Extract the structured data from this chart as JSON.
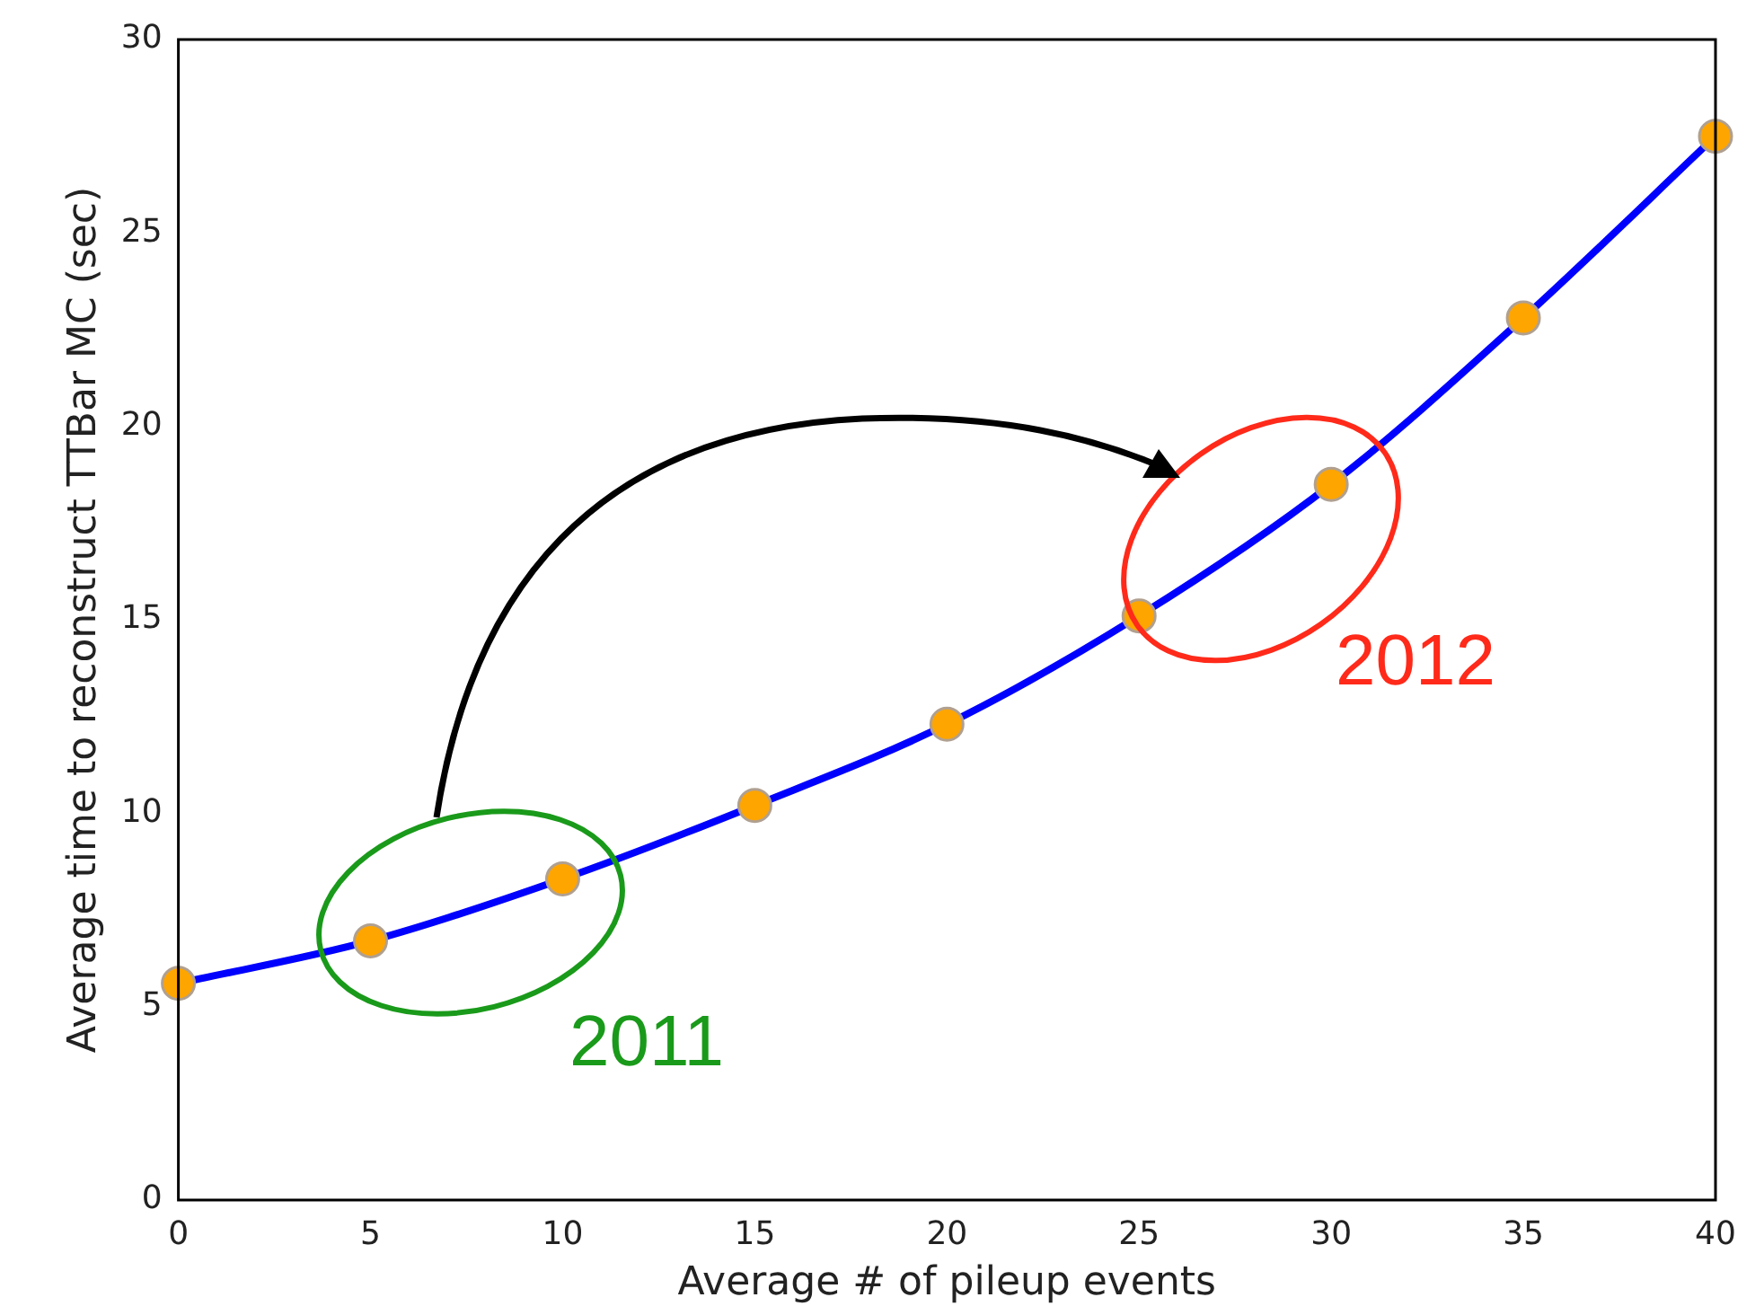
{
  "chart_data": {
    "type": "line",
    "xlabel": "Average # of pileup events",
    "ylabel": "Average time to reconstruct TTBar MC (sec)",
    "x": [
      0,
      5,
      10,
      15,
      20,
      25,
      30,
      35,
      40
    ],
    "series": [
      {
        "color": "#0000ff",
        "values": [
          5.6,
          6.7,
          8.3,
          10.2,
          12.3,
          15.1,
          18.5,
          22.8,
          27.5
        ]
      }
    ],
    "xlim": [
      0,
      40
    ],
    "xticks": [
      0,
      5,
      10,
      15,
      20,
      25,
      30,
      35,
      40
    ],
    "ylim": [
      0,
      30
    ],
    "yticks": [
      0,
      5,
      10,
      15,
      20,
      25,
      30
    ],
    "grid": false,
    "legend": false,
    "marker": "circle",
    "line_style": "solid",
    "annotations": [
      "2011",
      "2012"
    ]
  }
}
